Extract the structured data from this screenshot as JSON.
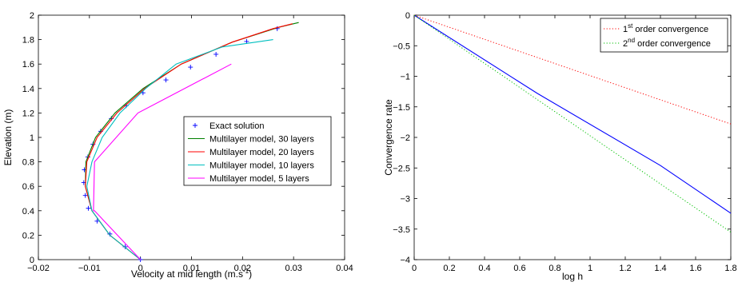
{
  "chart_data": [
    {
      "type": "line",
      "title": "",
      "xlabel": "Velocity at mid length (m.s",
      "xlabel_sup": "-1",
      "xlabel_suffix": ")",
      "ylabel": "Elevation (m)",
      "xlim": [
        -0.02,
        0.04
      ],
      "ylim": [
        0,
        2
      ],
      "xticks": [
        "−0.02",
        "−0.01",
        "0",
        "0.01",
        "0.02",
        "0.03",
        "0.04"
      ],
      "xtick_values": [
        -0.02,
        -0.01,
        0,
        0.01,
        0.02,
        0.03,
        0.04
      ],
      "yticks": [
        "0",
        "0.2",
        "0.4",
        "0.6",
        "0.8",
        "1",
        "1.2",
        "1.4",
        "1.6",
        "1.8",
        "2"
      ],
      "ytick_values": [
        0,
        0.2,
        0.4,
        0.6,
        0.8,
        1,
        1.2,
        1.4,
        1.6,
        1.8,
        2
      ],
      "grid": false,
      "legend_position": "right",
      "series": [
        {
          "name": "Exact solution",
          "style": "marker-plus",
          "color": "#0000ff",
          "x": [
            0,
            -0.003,
            -0.006,
            -0.0085,
            -0.0102,
            -0.0108,
            -0.0111,
            -0.011,
            -0.0103,
            -0.0093,
            -0.0078,
            -0.0057,
            -0.0028,
            0.0005,
            0.005,
            0.0098,
            0.0148,
            0.0208,
            0.0268
          ],
          "y": [
            0,
            0.105,
            0.21,
            0.315,
            0.42,
            0.525,
            0.63,
            0.735,
            0.84,
            0.945,
            1.05,
            1.155,
            1.26,
            1.365,
            1.47,
            1.575,
            1.68,
            1.785,
            1.89
          ]
        },
        {
          "name": "Multilayer model, 30 layers",
          "style": "line",
          "color": "#008000",
          "x": [
            0,
            -0.006,
            -0.0095,
            -0.0108,
            -0.0107,
            -0.0088,
            -0.005,
            0.0005,
            0.008,
            0.018,
            0.027,
            0.031
          ],
          "y": [
            0,
            0.2,
            0.4,
            0.6,
            0.8,
            1.0,
            1.2,
            1.4,
            1.6,
            1.78,
            1.9,
            1.94
          ]
        },
        {
          "name": "Multilayer model, 20 layers",
          "style": "line",
          "color": "#ff0000",
          "x": [
            0,
            -0.006,
            -0.0095,
            -0.0108,
            -0.0105,
            -0.0085,
            -0.0046,
            0.0008,
            0.008,
            0.018,
            0.026,
            0.0298
          ],
          "y": [
            0,
            0.2,
            0.4,
            0.6,
            0.8,
            1.0,
            1.2,
            1.4,
            1.6,
            1.78,
            1.89,
            1.93
          ]
        },
        {
          "name": "Multilayer model, 10 layers",
          "style": "line",
          "color": "#00bfbf",
          "x": [
            0,
            -0.006,
            -0.0095,
            -0.0105,
            -0.0095,
            -0.0075,
            -0.004,
            0.001,
            0.007,
            0.016,
            0.026
          ],
          "y": [
            0,
            0.2,
            0.4,
            0.6,
            0.8,
            1.0,
            1.2,
            1.4,
            1.6,
            1.74,
            1.8
          ]
        },
        {
          "name": "Multilayer model, 5 layers",
          "style": "line",
          "color": "#ff00ff",
          "x": [
            0,
            -0.009,
            -0.0092,
            -0.009,
            -0.0005,
            0.0178
          ],
          "y": [
            0,
            0.4,
            0.4,
            0.8,
            1.2,
            1.6
          ]
        }
      ]
    },
    {
      "type": "line",
      "title": "",
      "xlabel": "log h",
      "ylabel": "Convergence rate",
      "xlim": [
        0,
        1.8
      ],
      "ylim": [
        -4,
        0
      ],
      "xticks": [
        "0",
        "0.2",
        "0.4",
        "0.6",
        "0.8",
        "1",
        "1.2",
        "1.4",
        "1.6",
        "1.8"
      ],
      "xtick_values": [
        0,
        0.2,
        0.4,
        0.6,
        0.8,
        1,
        1.2,
        1.4,
        1.6,
        1.8
      ],
      "yticks": [
        "0",
        "−0.5",
        "−1",
        "−1.5",
        "−2",
        "−2.5",
        "−3",
        "−3.5",
        "−4"
      ],
      "ytick_values": [
        0,
        -0.5,
        -1,
        -1.5,
        -2,
        -2.5,
        -3,
        -3.5,
        -4
      ],
      "grid": false,
      "legend_position": "top-right",
      "series": [
        {
          "name": "",
          "style": "line",
          "color": "#0000ff",
          "x": [
            0,
            0.7,
            1.4,
            1.8
          ],
          "y": [
            0,
            -1.28,
            -2.46,
            -3.24
          ]
        },
        {
          "name": "1st order convergence",
          "name_parts": [
            "1",
            "st",
            " order convergence"
          ],
          "style": "dotted",
          "color": "#ff0000",
          "x": [
            0,
            1.8
          ],
          "y": [
            0,
            -1.78
          ]
        },
        {
          "name": "2nd order convergence",
          "name_parts": [
            "2",
            "nd",
            " order convergence"
          ],
          "style": "dotted",
          "color": "#00c000",
          "x": [
            0,
            1.8
          ],
          "y": [
            0,
            -3.55
          ]
        }
      ]
    }
  ]
}
